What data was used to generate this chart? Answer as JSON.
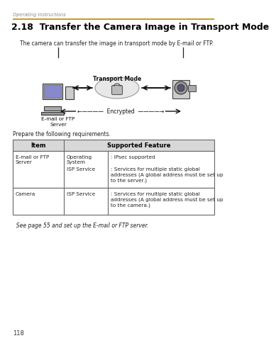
{
  "bg_color": "#ffffff",
  "header_text": "Operating Instructions",
  "header_line_color": "#c8a020",
  "title": "2.18  Transfer the Camera Image in Transport Mode",
  "subtitle": "The camera can transfer the image in transport mode by E-mail or FTP.",
  "diagram_label_server": "E-mail or FTP\nServer",
  "diagram_label_transport": "Transport Mode",
  "diagram_label_encrypted": "←————  Encrypted  ————→",
  "prepare_text": "Prepare the following requirements.",
  "table_header_item": "Item",
  "table_header_feature": "Supported Feature",
  "table_rows": [
    {
      "item": "E-mail or FTP\nServer",
      "sub1": "Operating\nSystem",
      "feat1": ": IPsec supported",
      "sub2": "ISP Service",
      "feat2": ": Services for multiple static global\naddresses (A global address must be set up\nto the server.)"
    },
    {
      "item": "Camera",
      "sub1": "ISP Service",
      "feat1": ": Services for multiple static global\naddresses (A global address must be set up\nto the camera.)",
      "sub2": "",
      "feat2": ""
    }
  ],
  "footer_text": "  See page 55 and set up the E-mail or FTP server.",
  "page_number": "118",
  "table_header_bg": "#d8d8d8",
  "table_border_color": "#666666",
  "title_color": "#000000",
  "text_color": "#222222",
  "header_color": "#888888",
  "gold_line_color": "#c8a020"
}
